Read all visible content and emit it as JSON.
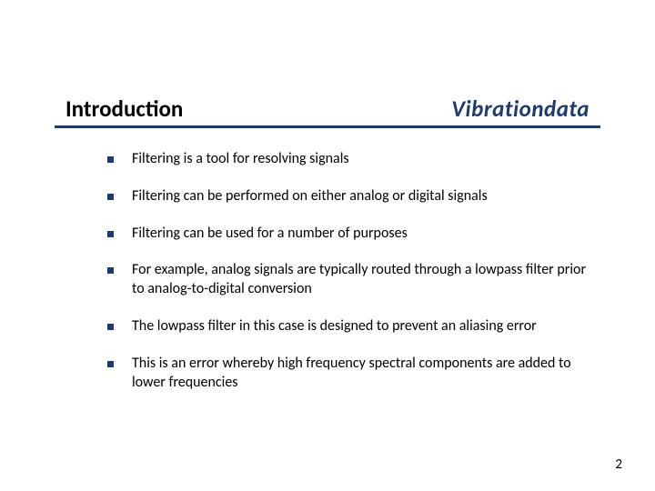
{
  "header": {
    "title": "Introduction",
    "brand": "Vibrationdata"
  },
  "colors": {
    "accent": "#1f3a6e",
    "text": "#000000",
    "background": "#ffffff"
  },
  "typography": {
    "title_fontsize": 25,
    "brand_fontsize": 25,
    "body_fontsize": 16,
    "pagenum_fontsize": 15
  },
  "bullets": [
    {
      "text": "Filtering is a tool for resolving signals"
    },
    {
      "text": "Filtering can be performed on either analog or digital signals"
    },
    {
      "text": "Filtering can be used for a number of purposes"
    },
    {
      "text": "For example, analog signals are typically routed through a lowpass filter prior to analog-to-digital conversion"
    },
    {
      "text": "The lowpass filter in this case is designed to prevent an aliasing error"
    },
    {
      "text": "This is an error whereby high frequency spectral components are added to lower frequencies"
    }
  ],
  "page_number": "2"
}
